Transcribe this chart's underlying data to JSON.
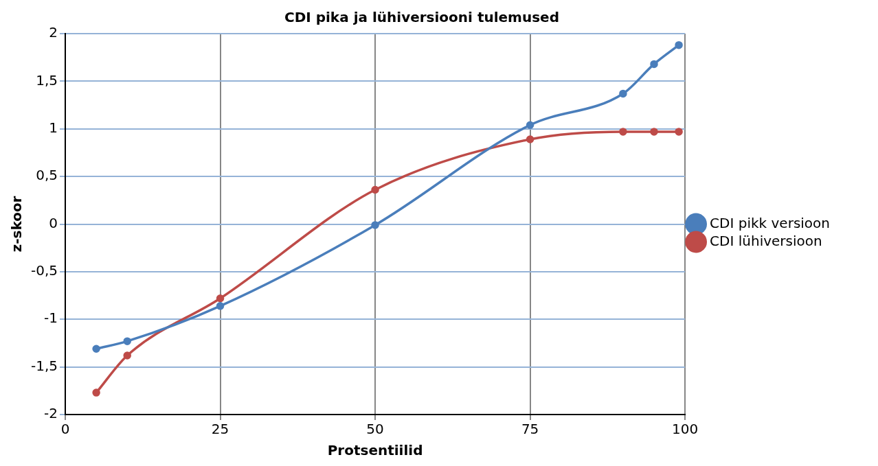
{
  "chart_data": {
    "type": "line",
    "title": "CDI pika ja lühiversiooni tulemused",
    "xlabel": "Protsentiilid",
    "ylabel": "z-skoor",
    "x": [
      5,
      10,
      25,
      50,
      75,
      90,
      95,
      99
    ],
    "series": [
      {
        "name": "CDI pikk versioon",
        "color": "#4a7ebb",
        "values": [
          -1.31,
          -1.23,
          -0.86,
          -0.01,
          1.04,
          1.37,
          1.68,
          1.88
        ]
      },
      {
        "name": "CDI lühiversioon",
        "color": "#be4b48",
        "values": [
          -1.77,
          -1.38,
          -0.78,
          0.36,
          0.89,
          0.97,
          0.97,
          0.97
        ]
      }
    ],
    "xlim": [
      0,
      100
    ],
    "xticks": [
      0,
      25,
      50,
      75,
      100
    ],
    "ylim": [
      -2,
      2
    ],
    "yticks": [
      {
        "value": -2,
        "label": "-2"
      },
      {
        "value": -1.5,
        "label": "-1,5"
      },
      {
        "value": -1,
        "label": "-1"
      },
      {
        "value": -0.5,
        "label": "-0,5"
      },
      {
        "value": 0,
        "label": "0"
      },
      {
        "value": 0.5,
        "label": "0,5"
      },
      {
        "value": 1,
        "label": "1"
      },
      {
        "value": 1.5,
        "label": "1,5"
      },
      {
        "value": 2,
        "label": "2"
      }
    ],
    "grid": true,
    "legend": "right",
    "marker": "circle",
    "line_style": "solid"
  }
}
